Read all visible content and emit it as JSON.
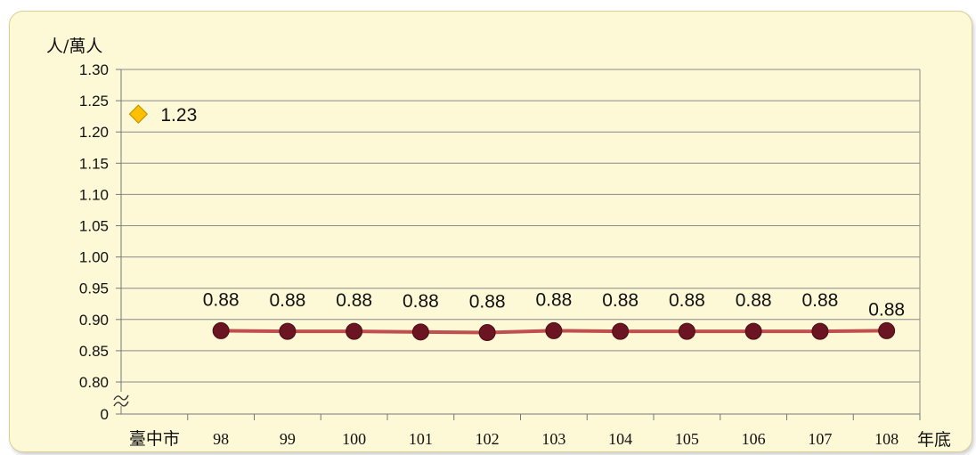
{
  "chart_data": {
    "type": "line",
    "ylabel": "人/萬人",
    "xlabel": "年底",
    "y_ticks": [
      "1.30",
      "1.25",
      "1.20",
      "1.15",
      "1.10",
      "1.05",
      "1.00",
      "0.95",
      "0.90",
      "0.85",
      "0.80",
      "0"
    ],
    "ylim": [
      0.8,
      1.3
    ],
    "axis_break": true,
    "grid": true,
    "categories": [
      "臺中市",
      "98",
      "99",
      "100",
      "101",
      "102",
      "103",
      "104",
      "105",
      "106",
      "107",
      "108"
    ],
    "reference": {
      "category": "臺中市",
      "value": 1.23,
      "label": "1.23",
      "marker": "diamond"
    },
    "series": [
      {
        "x": [
          "98",
          "99",
          "100",
          "101",
          "102",
          "103",
          "104",
          "105",
          "106",
          "107",
          "108"
        ],
        "values": [
          0.882,
          0.881,
          0.881,
          0.88,
          0.879,
          0.882,
          0.881,
          0.881,
          0.881,
          0.881,
          0.882
        ],
        "labels": [
          "0.88",
          "0.88",
          "0.88",
          "0.88",
          "0.88",
          "0.88",
          "0.88",
          "0.88",
          "0.88",
          "0.88",
          "0.88"
        ]
      }
    ],
    "colors": {
      "line": "#c0504d",
      "marker": "#6b1522",
      "diamond": "#ffc000",
      "diamond_edge": "#c08a00",
      "grid": "#8a8a8a",
      "frame": "#fdf8d6"
    }
  }
}
